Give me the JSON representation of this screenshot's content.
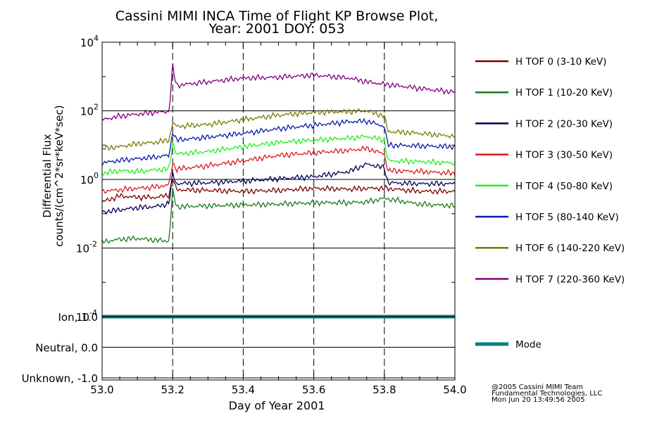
{
  "chart_data": {
    "type": "line",
    "title_line1": "Cassini MIMI INCA Time of Flight KP Browse Plot,",
    "title_line2": "Year: 2001 DOY: 053",
    "ylabel_line1": "Differential Flux",
    "ylabel_line2": "counts/(cm^2*sr*keV*sec)",
    "xlabel": "Day of Year 2001",
    "y_scale": "log",
    "ylim": [
      0.0001,
      10000
    ],
    "xlim": [
      53.0,
      54.0
    ],
    "x_ticks": [
      "53.0",
      "53.2",
      "53.4",
      "53.6",
      "53.8",
      "54.0"
    ],
    "x_tick_values": [
      53.0,
      53.2,
      53.4,
      53.6,
      53.8,
      54.0
    ],
    "y_ticks": [
      {
        "base": "10",
        "exp": "4",
        "value": 10000
      },
      {
        "base": "10",
        "exp": "2",
        "value": 100
      },
      {
        "base": "10",
        "exp": "0",
        "value": 1
      },
      {
        "base": "10",
        "exp": "-2",
        "value": 0.01
      },
      {
        "base": "10",
        "exp": "-4",
        "value": 0.0001
      }
    ],
    "dashed_vertical_lines_at": [
      53.2,
      53.4,
      53.6,
      53.8
    ],
    "solid_horizontal_lines_at": [
      100,
      1,
      0.01
    ],
    "series": [
      {
        "name": "H TOF 0 (3-10 KeV)",
        "color": "#7a0000",
        "x": [
          53.0,
          53.05,
          53.1,
          53.15,
          53.19,
          53.2,
          53.21,
          53.3,
          53.4,
          53.5,
          53.6,
          53.7,
          53.75,
          53.8,
          53.9,
          54.0
        ],
        "y": [
          0.22,
          0.33,
          0.3,
          0.3,
          0.35,
          1.1,
          0.5,
          0.48,
          0.45,
          0.48,
          0.55,
          0.52,
          0.55,
          0.55,
          0.45,
          0.45
        ]
      },
      {
        "name": "H TOF 1 (10-20 KeV)",
        "color": "#1b7a1b",
        "x": [
          53.0,
          53.05,
          53.1,
          53.15,
          53.19,
          53.2,
          53.21,
          53.3,
          53.4,
          53.5,
          53.6,
          53.7,
          53.75,
          53.8,
          53.9,
          54.0
        ],
        "y": [
          0.015,
          0.018,
          0.019,
          0.017,
          0.016,
          0.5,
          0.16,
          0.17,
          0.18,
          0.19,
          0.21,
          0.21,
          0.22,
          0.28,
          0.19,
          0.17
        ]
      },
      {
        "name": "H TOF 2 (20-30 KeV)",
        "color": "#00005a",
        "x": [
          53.0,
          53.05,
          53.1,
          53.15,
          53.19,
          53.2,
          53.21,
          53.3,
          53.4,
          53.5,
          53.6,
          53.7,
          53.75,
          53.8,
          53.81,
          53.9,
          54.0
        ],
        "y": [
          0.11,
          0.13,
          0.15,
          0.16,
          0.2,
          1.5,
          0.75,
          0.8,
          0.9,
          1.05,
          1.2,
          1.7,
          2.8,
          2.2,
          0.8,
          0.75,
          0.75
        ]
      },
      {
        "name": "H TOF 3 (30-50 KeV)",
        "color": "#dd1a1a",
        "x": [
          53.0,
          53.05,
          53.1,
          53.15,
          53.19,
          53.2,
          53.21,
          53.3,
          53.4,
          53.5,
          53.6,
          53.7,
          53.75,
          53.8,
          53.81,
          53.9,
          54.0
        ],
        "y": [
          0.45,
          0.5,
          0.55,
          0.6,
          0.7,
          3.0,
          2.0,
          2.5,
          3.5,
          5.0,
          6.0,
          7.0,
          8.0,
          5.5,
          1.8,
          1.7,
          1.5
        ]
      },
      {
        "name": "H TOF 4 (50-80 KeV)",
        "color": "#22ee22",
        "x": [
          53.0,
          53.05,
          53.1,
          53.15,
          53.19,
          53.2,
          53.21,
          53.3,
          53.4,
          53.5,
          53.6,
          53.7,
          53.75,
          53.8,
          53.81,
          53.9,
          54.0
        ],
        "y": [
          1.5,
          1.8,
          1.7,
          1.9,
          2.0,
          12.0,
          5.5,
          6.5,
          9.0,
          12.0,
          14.0,
          16.0,
          18.0,
          14.0,
          3.5,
          3.3,
          3.0
        ]
      },
      {
        "name": "H TOF 5 (80-140 KeV)",
        "color": "#0a1aaa",
        "x": [
          53.0,
          53.05,
          53.1,
          53.15,
          53.19,
          53.2,
          53.21,
          53.3,
          53.4,
          53.5,
          53.6,
          53.7,
          53.75,
          53.8,
          53.81,
          53.9,
          54.0
        ],
        "y": [
          3.0,
          3.6,
          4.0,
          4.5,
          5.0,
          25.0,
          14.0,
          17.0,
          22.0,
          30.0,
          38.0,
          48.0,
          50.0,
          35.0,
          10.0,
          9.5,
          9.0
        ]
      },
      {
        "name": "H TOF 6 (140-220 KeV)",
        "color": "#7a7a00",
        "x": [
          53.0,
          53.05,
          53.1,
          53.15,
          53.19,
          53.2,
          53.21,
          53.3,
          53.4,
          53.5,
          53.6,
          53.7,
          53.75,
          53.8,
          53.81,
          53.9,
          54.0
        ],
        "y": [
          8.0,
          9.0,
          11.0,
          12.0,
          14.0,
          45.0,
          35.0,
          40.0,
          55.0,
          75.0,
          90.0,
          95.0,
          100.0,
          70.0,
          25.0,
          22.0,
          18.0
        ]
      },
      {
        "name": "H TOF 7 (220-360 KeV)",
        "color": "#800080",
        "x": [
          53.0,
          53.05,
          53.1,
          53.15,
          53.19,
          53.2,
          53.21,
          53.3,
          53.4,
          53.5,
          53.6,
          53.7,
          53.75,
          53.8,
          53.9,
          54.0
        ],
        "y": [
          55.0,
          70.0,
          80.0,
          90.0,
          95.0,
          2000.0,
          550.0,
          700.0,
          900.0,
          950.0,
          1100.0,
          900.0,
          700.0,
          600.0,
          450.0,
          350.0
        ]
      }
    ],
    "mode_panel": {
      "ticks": [
        "Ion, 1.0",
        "Neutral, 0.0",
        "Unknown, -1.0"
      ],
      "tick_values": [
        1.0,
        0.0,
        -1.0
      ],
      "ylim": [
        -1.0,
        1.0
      ],
      "legend_label": "Mode",
      "color": "#008080",
      "x": [
        53.0,
        54.0
      ],
      "y": [
        1.0,
        1.0
      ]
    }
  },
  "credits": {
    "line1": "@2005 Cassini MIMI Team",
    "line2": "Fundamental Technologies, LLC",
    "line3": "Mon Jun 20 13:49:56 2005"
  }
}
